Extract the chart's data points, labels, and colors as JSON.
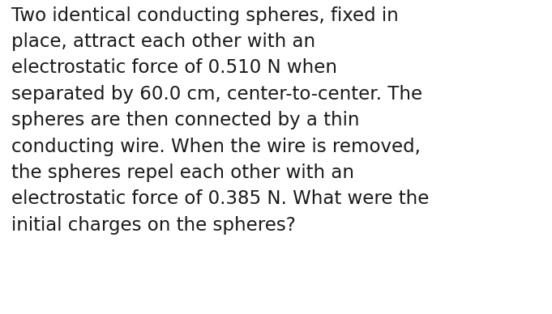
{
  "text": "Two identical conducting spheres, fixed in\nplace, attract each other with an\nelectrostatic force of 0.510 N when\nseparated by 60.0 cm, center-to-center. The\nspheres are then connected by a thin\nconducting wire. When the wire is removed,\nthe spheres repel each other with an\nelectrostatic force of 0.385 N. What were the\ninitial charges on the spheres?",
  "background_color": "#ffffff",
  "text_color": "#1a1a1a",
  "font_size": 16.5,
  "fig_width": 6.81,
  "fig_height": 3.88
}
